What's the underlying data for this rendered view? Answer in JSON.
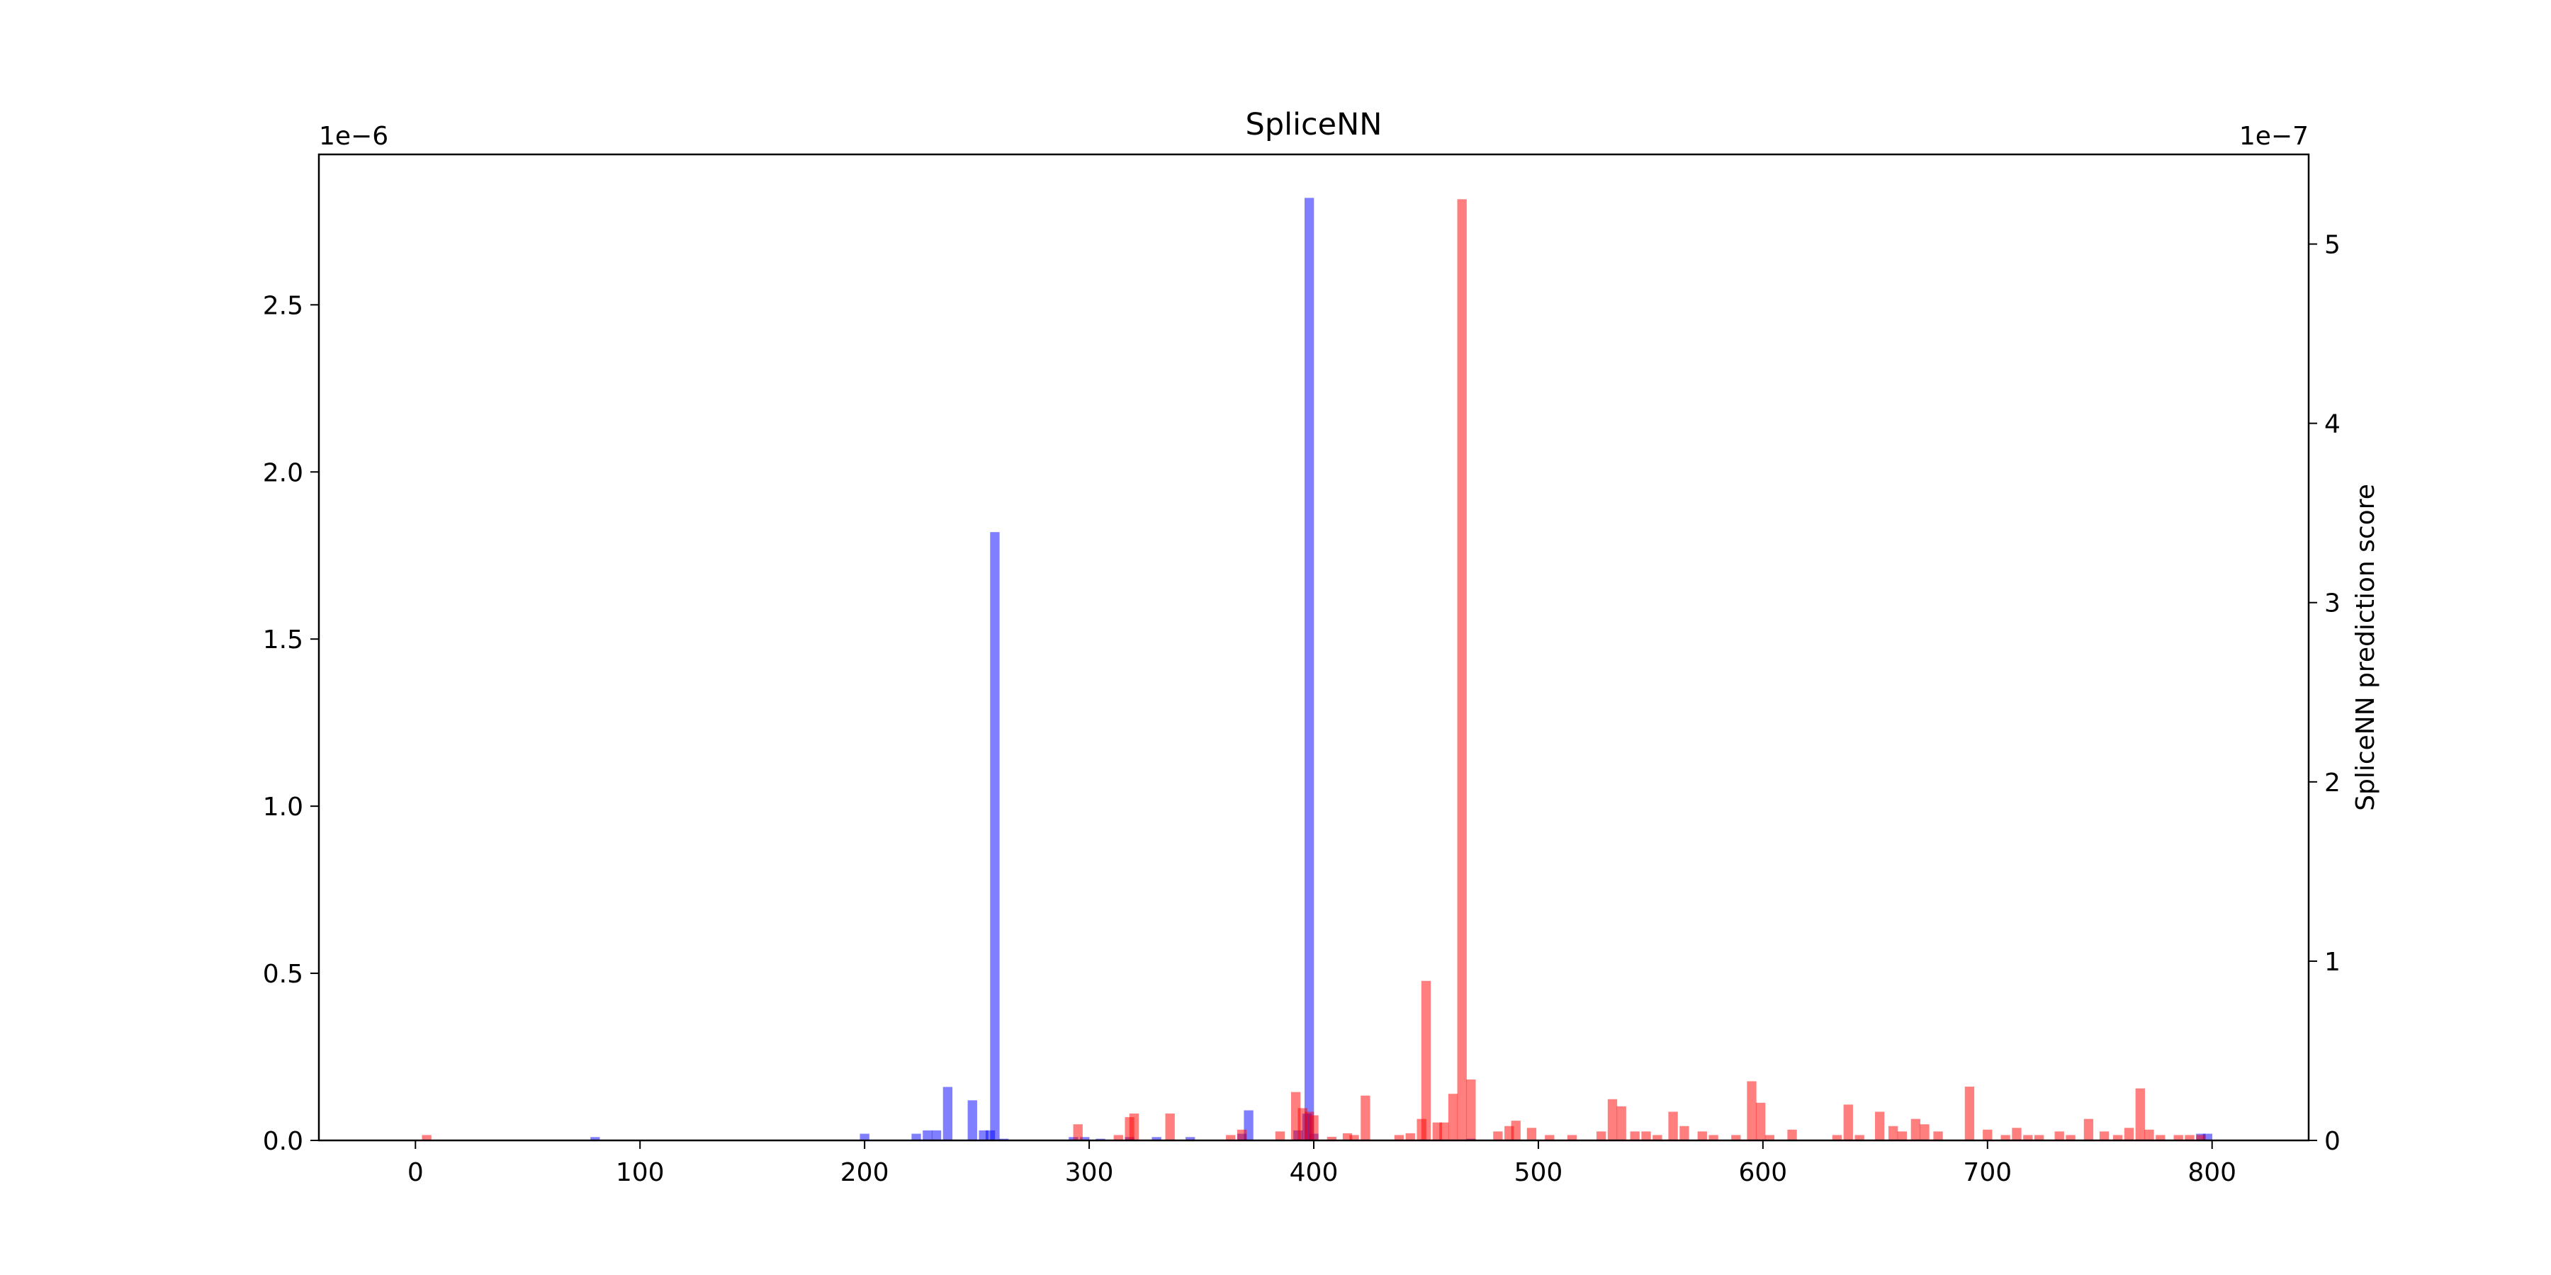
{
  "chart_data": {
    "type": "bar",
    "title": "SpliceNN",
    "xlabel": "",
    "ylabel_left": "",
    "ylabel_right": "SpliceNN prediction score",
    "xlim": [
      -43,
      843
    ],
    "x_ticks": [
      0,
      100,
      200,
      300,
      400,
      500,
      600,
      700,
      800
    ],
    "grid": false,
    "legend": "none",
    "y_left": {
      "multiplier_label": "1e−6",
      "scale": 1e-06,
      "ylim": [
        0,
        2.95
      ],
      "ticks": [
        0.0,
        0.5,
        1.0,
        1.5,
        2.0,
        2.5
      ],
      "tick_labels": [
        "0.0",
        "0.5",
        "1.0",
        "1.5",
        "2.0",
        "2.5"
      ]
    },
    "y_right": {
      "multiplier_label": "1e−7",
      "scale": 1e-07,
      "ylim": [
        0,
        5.5
      ],
      "ticks": [
        0,
        1,
        2,
        3,
        4,
        5
      ],
      "tick_labels": [
        "0",
        "1",
        "2",
        "3",
        "4",
        "5"
      ]
    },
    "bin_width": 4.2,
    "series": [
      {
        "axis": "left",
        "color": "#0000ff",
        "alpha": 0.5,
        "x": [
          80,
          200,
          223,
          228,
          232,
          237,
          248,
          253,
          256,
          258,
          262,
          293,
          298,
          305,
          318,
          330,
          345,
          368,
          371,
          393,
          397,
          398,
          400,
          470,
          795,
          798
        ],
        "values": [
          0.01,
          0.02,
          0.02,
          0.03,
          0.03,
          0.16,
          0.12,
          0.03,
          0.03,
          1.82,
          0.005,
          0.01,
          0.01,
          0.005,
          0.01,
          0.01,
          0.01,
          0.02,
          0.09,
          0.03,
          0.08,
          2.82,
          0.02,
          0.005,
          0.02,
          0.02
        ]
      },
      {
        "axis": "right",
        "color": "#ff0000",
        "alpha": 0.5,
        "x": [
          5,
          295,
          313,
          318,
          320,
          336,
          363,
          368,
          385,
          392,
          395,
          398,
          400,
          408,
          415,
          418,
          423,
          438,
          443,
          448,
          450,
          455,
          458,
          462,
          466,
          470,
          482,
          487,
          490,
          497,
          505,
          515,
          528,
          533,
          537,
          543,
          548,
          553,
          560,
          565,
          573,
          578,
          588,
          595,
          599,
          603,
          613,
          633,
          638,
          643,
          652,
          658,
          662,
          668,
          672,
          678,
          692,
          700,
          708,
          713,
          718,
          723,
          732,
          737,
          745,
          752,
          758,
          763,
          768,
          772,
          777,
          785,
          790,
          795
        ],
        "values": [
          0.03,
          0.09,
          0.03,
          0.13,
          0.15,
          0.15,
          0.03,
          0.06,
          0.05,
          0.27,
          0.18,
          0.16,
          0.14,
          0.02,
          0.04,
          0.03,
          0.25,
          0.03,
          0.04,
          0.12,
          0.89,
          0.1,
          0.1,
          0.26,
          5.25,
          0.34,
          0.05,
          0.08,
          0.11,
          0.07,
          0.03,
          0.03,
          0.05,
          0.23,
          0.19,
          0.05,
          0.05,
          0.03,
          0.16,
          0.08,
          0.05,
          0.03,
          0.03,
          0.33,
          0.21,
          0.03,
          0.06,
          0.03,
          0.2,
          0.03,
          0.16,
          0.08,
          0.05,
          0.12,
          0.09,
          0.05,
          0.3,
          0.06,
          0.03,
          0.07,
          0.03,
          0.03,
          0.05,
          0.03,
          0.12,
          0.05,
          0.03,
          0.07,
          0.29,
          0.06,
          0.03,
          0.03,
          0.03,
          0.03
        ]
      }
    ]
  }
}
